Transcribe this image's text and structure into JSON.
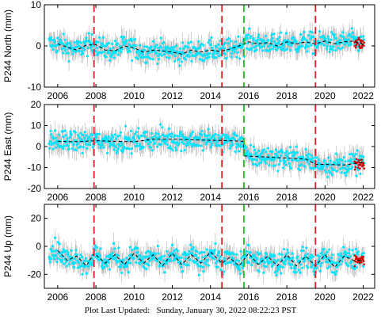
{
  "colors": {
    "background": "#ffffff",
    "frame": "#000000",
    "errorbar": "#b4b4b4",
    "daily": "#00e5ff",
    "rapid": "#d40000",
    "model": "#000000",
    "equipment_change": "#dd2222",
    "earthquake": "#22bb22"
  },
  "footer": {
    "label": "Plot Last Updated:",
    "timestamp": "Sunday, January 30, 2022 08:22:23 PST"
  },
  "chart_data": [
    {
      "type": "scatter",
      "ylabel": "P244 North (mm)",
      "xlim": [
        2005.3,
        2022.6
      ],
      "ylim": [
        -10,
        10
      ],
      "xticks": [
        2006,
        2008,
        2010,
        2012,
        2014,
        2016,
        2018,
        2020,
        2022
      ],
      "yticks": [
        -10,
        0,
        10
      ],
      "series": [
        {
          "x": [
            2006.0,
            2006.5,
            2007.0,
            2007.5,
            2008.0,
            2008.5,
            2009.0,
            2009.5,
            2010.0,
            2010.5,
            2011.0,
            2011.5,
            2012.0,
            2012.5,
            2013.0,
            2013.5,
            2014.0,
            2014.5,
            2015.0,
            2015.5,
            2016.0,
            2016.5,
            2017.0,
            2017.5,
            2018.0,
            2018.5,
            2019.0,
            2019.5,
            2020.0,
            2020.5,
            2021.0,
            2021.5,
            2022.0
          ],
          "values": [
            0.5,
            -0.3,
            -1.0,
            0.2,
            0.3,
            -1.0,
            -1.2,
            0.0,
            -0.5,
            -1.5,
            -1.0,
            -1.2,
            -1.5,
            -2.0,
            -1.0,
            -1.5,
            -1.0,
            -1.3,
            -0.8,
            0.0,
            1.0,
            0.5,
            0.8,
            0.0,
            1.0,
            0.5,
            1.0,
            0.5,
            1.2,
            0.5,
            1.0,
            1.2,
            0.3
          ]
        }
      ],
      "equipment_change_years": [
        2007.9,
        2014.6,
        2019.5
      ],
      "earthquake_years": [
        2015.75
      ]
    },
    {
      "type": "scatter",
      "ylabel": "P244 East (mm)",
      "xlim": [
        2005.3,
        2022.6
      ],
      "ylim": [
        -20,
        20
      ],
      "xticks": [
        2006,
        2008,
        2010,
        2012,
        2014,
        2016,
        2018,
        2020,
        2022
      ],
      "yticks": [
        -20,
        -10,
        0,
        10,
        20
      ],
      "series": [
        {
          "x": [
            2006.0,
            2007.0,
            2008.0,
            2009.0,
            2010.0,
            2011.0,
            2012.0,
            2013.0,
            2014.0,
            2015.0,
            2015.7,
            2015.8,
            2016.5,
            2017.0,
            2018.0,
            2019.0,
            2019.5,
            2020.0,
            2021.0,
            2022.0
          ],
          "values": [
            2.5,
            2.3,
            2.8,
            2.5,
            2.3,
            3.5,
            3.5,
            3.2,
            3.0,
            2.8,
            2.5,
            -4.5,
            -4.8,
            -5.0,
            -5.5,
            -6.0,
            -8.5,
            -8.5,
            -8.8,
            -7.5
          ]
        }
      ],
      "equipment_change_years": [
        2007.9,
        2014.6,
        2019.5
      ],
      "earthquake_years": [
        2015.75
      ]
    },
    {
      "type": "scatter",
      "ylabel": "P244 Up (mm)",
      "xlim": [
        2005.3,
        2022.6
      ],
      "ylim": [
        -30,
        30
      ],
      "xticks": [
        2006,
        2008,
        2010,
        2012,
        2014,
        2016,
        2018,
        2020,
        2022
      ],
      "yticks": [
        -20,
        0,
        20
      ],
      "series": [
        {
          "x": [
            2006.0,
            2006.5,
            2007.0,
            2007.5,
            2007.9,
            2008.5,
            2009.0,
            2009.5,
            2010.0,
            2010.5,
            2011.0,
            2011.5,
            2012.0,
            2012.5,
            2013.0,
            2013.5,
            2014.0,
            2014.6,
            2015.0,
            2015.5,
            2016.0,
            2016.5,
            2017.0,
            2017.5,
            2018.0,
            2018.5,
            2019.0,
            2019.5,
            2020.0,
            2020.5,
            2021.0,
            2021.5,
            2022.0
          ],
          "values": [
            -3,
            -10,
            -7,
            -14,
            -5,
            -12,
            -6,
            -13,
            -5,
            -12,
            -6,
            -14,
            -5,
            -13,
            -6,
            -12,
            -4,
            -12,
            -8,
            -14,
            -5,
            -13,
            -7,
            -14,
            -6,
            -14,
            -7,
            -14,
            -6,
            -15,
            -7,
            -10,
            -10
          ]
        }
      ],
      "equipment_change_years": [
        2007.9,
        2014.6,
        2019.5
      ],
      "earthquake_years": [
        2015.75
      ]
    }
  ]
}
